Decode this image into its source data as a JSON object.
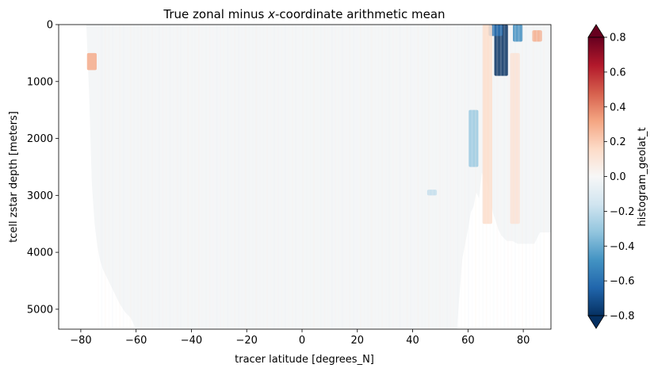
{
  "chart_data": {
    "type": "heatmap",
    "title": "True zonal minus x-coordinate arithmetic mean",
    "title_parts": {
      "before": "True zonal minus ",
      "italic": "x",
      "after": "-coordinate arithmetic mean"
    },
    "xlabel": "tracer latitude [degrees_N]",
    "ylabel": "tcell zstar depth [meters]",
    "xlim": [
      -88,
      90
    ],
    "ylim": [
      5350,
      0
    ],
    "xticks": [
      -80,
      -60,
      -40,
      -20,
      0,
      20,
      40,
      60,
      80
    ],
    "yticks": [
      0,
      1000,
      2000,
      3000,
      4000,
      5000
    ],
    "colorbar": {
      "label": "histogram_geolat_t",
      "range": [
        -0.8,
        0.8
      ],
      "ticks": [
        -0.8,
        -0.6,
        -0.4,
        -0.2,
        0.0,
        0.2,
        0.4,
        0.6,
        0.8
      ],
      "tick_labels": [
        "−0.8",
        "−0.6",
        "−0.4",
        "−0.2",
        "0.0",
        "0.2",
        "0.4",
        "0.6",
        "0.8"
      ],
      "extend": "both",
      "colormap": "RdBu_r"
    },
    "data_extent": {
      "note_values": "valid ocean region; near-zero background with localized anomalies",
      "boundary_lat": [
        -78,
        -77,
        -76,
        -75,
        -74,
        -73,
        -72,
        -70,
        -68,
        -66,
        -64,
        -62,
        -60
      ],
      "boundary_depth": [
        0,
        1200,
        2800,
        3500,
        3900,
        4150,
        4300,
        4500,
        4700,
        4900,
        5050,
        5150,
        5350
      ]
    },
    "anomalies": [
      {
        "lat": 72,
        "depth_range": [
          0,
          900
        ],
        "value": -0.8
      },
      {
        "lat": 70,
        "depth_range": [
          0,
          200
        ],
        "value": -0.6
      },
      {
        "lat": 78,
        "depth_range": [
          0,
          300
        ],
        "value": -0.5
      },
      {
        "lat": 85,
        "depth_range": [
          100,
          300
        ],
        "value": 0.3
      },
      {
        "lat": -76,
        "depth_range": [
          500,
          800
        ],
        "value": 0.3
      },
      {
        "lat": 67,
        "depth_range": [
          0,
          3500
        ],
        "value": 0.15
      },
      {
        "lat": 77,
        "depth_range": [
          500,
          3500
        ],
        "value": 0.12
      },
      {
        "lat": 62,
        "depth_range": [
          1500,
          2500
        ],
        "value": -0.3
      },
      {
        "lat": 47,
        "depth_range": [
          2900,
          3000
        ],
        "value": -0.2
      }
    ]
  }
}
